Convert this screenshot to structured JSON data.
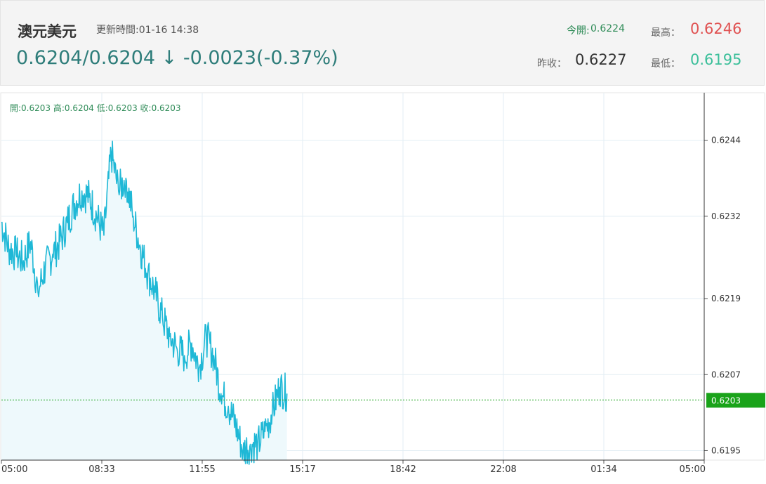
{
  "header": {
    "title": "澳元美元",
    "updated": "更新時間:01-16 14:38",
    "quote": "0.6204/0.6204 ↓ -0.0023(-0.37%)",
    "open_label": "今開:",
    "open_value": "0.6224",
    "high_label": "最高：",
    "high_value": "0.6246",
    "prev_close_label": "昨收：",
    "prev_close_value": "0.6227",
    "low_label": "最低：",
    "low_value": "0.6195"
  },
  "ohlc_text": "開:0.6203 高:0.6204 低:0.6203 收:0.6203",
  "colors": {
    "line": "#1fb8d6",
    "area": "#eef9fc",
    "grid": "#e3eef4",
    "current_tag": "#1aa31a",
    "high": "#e05252",
    "low": "#3bbf9a"
  },
  "chart_data": {
    "type": "area",
    "x_tick_labels": [
      "05:00",
      "08:33",
      "11:55",
      "15:17",
      "18:42",
      "22:08",
      "01:34",
      "05:00"
    ],
    "y_tick_labels": [
      "0.6244",
      "0.6232",
      "0.6219",
      "0.6207",
      "0.6195"
    ],
    "y_ticks": [
      0.6244,
      0.6232,
      0.6219,
      0.6207,
      0.6195
    ],
    "ylim": [
      0.61935,
      0.62515
    ],
    "current_price": "0.6203",
    "current_price_value": 0.6203,
    "total_hours": 24,
    "grid": true,
    "series": [
      {
        "x": [
          0,
          0.25,
          0.5,
          0.75,
          1.0,
          1.25,
          1.5,
          1.75,
          2.0,
          2.25,
          2.5,
          2.75,
          3.0,
          3.25,
          3.5,
          3.75,
          4.0,
          4.25,
          4.5,
          4.75,
          5.0,
          5.25,
          5.5,
          5.75,
          6.0,
          6.25,
          6.5,
          6.75,
          7.0,
          7.25,
          7.5,
          7.75,
          8.0,
          8.25,
          8.5,
          8.75,
          9.0,
          9.25,
          9.5,
          9.75
        ],
        "y": [
          0.6231,
          0.6227,
          0.6226,
          0.6225,
          0.6228,
          0.622,
          0.6224,
          0.6226,
          0.6228,
          0.6231,
          0.6234,
          0.6236,
          0.6235,
          0.6232,
          0.6229,
          0.6242,
          0.6236,
          0.6238,
          0.6232,
          0.6227,
          0.6223,
          0.622,
          0.6216,
          0.6213,
          0.6211,
          0.621,
          0.6212,
          0.6208,
          0.6213,
          0.621,
          0.6204,
          0.6202,
          0.6199,
          0.6195,
          0.6196,
          0.6196,
          0.6198,
          0.6201,
          0.6205,
          0.6204
        ]
      }
    ]
  }
}
